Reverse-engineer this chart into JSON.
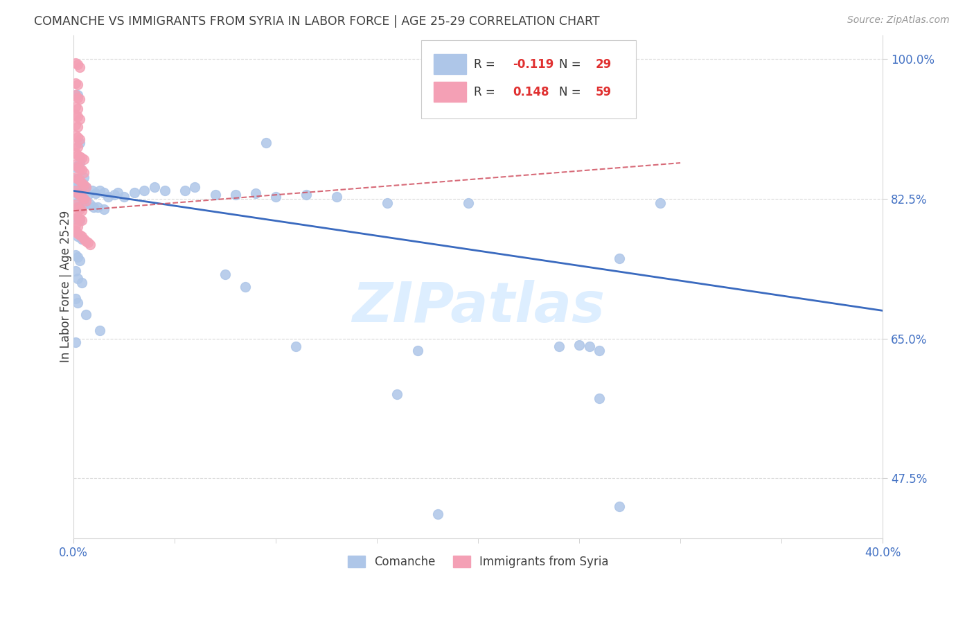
{
  "title": "COMANCHE VS IMMIGRANTS FROM SYRIA IN LABOR FORCE | AGE 25-29 CORRELATION CHART",
  "source": "Source: ZipAtlas.com",
  "ylabel": "In Labor Force | Age 25-29",
  "xlim": [
    0.0,
    0.4
  ],
  "ylim": [
    0.4,
    1.03
  ],
  "watermark": "ZIPatlas",
  "blue_color": "#aec6e8",
  "pink_color": "#f4a0b5",
  "blue_line_color": "#3a6abf",
  "pink_line_color": "#d05060",
  "grid_color": "#d8d8d8",
  "title_color": "#404040",
  "axis_color": "#4472c4",
  "watermark_color": "#ddeeff",
  "blue_scatter": [
    [
      0.001,
      0.955
    ],
    [
      0.002,
      0.955
    ],
    [
      0.003,
      0.895
    ],
    [
      0.001,
      0.865
    ],
    [
      0.003,
      0.87
    ],
    [
      0.001,
      0.85
    ],
    [
      0.002,
      0.85
    ],
    [
      0.003,
      0.848
    ],
    [
      0.005,
      0.852
    ],
    [
      0.001,
      0.84
    ],
    [
      0.002,
      0.84
    ],
    [
      0.004,
      0.843
    ],
    [
      0.006,
      0.84
    ],
    [
      0.001,
      0.833
    ],
    [
      0.002,
      0.832
    ],
    [
      0.003,
      0.83
    ],
    [
      0.005,
      0.828
    ],
    [
      0.007,
      0.83
    ],
    [
      0.009,
      0.835
    ],
    [
      0.011,
      0.832
    ],
    [
      0.013,
      0.835
    ],
    [
      0.015,
      0.833
    ],
    [
      0.017,
      0.828
    ],
    [
      0.02,
      0.83
    ],
    [
      0.022,
      0.833
    ],
    [
      0.025,
      0.828
    ],
    [
      0.03,
      0.833
    ],
    [
      0.035,
      0.835
    ],
    [
      0.04,
      0.84
    ],
    [
      0.045,
      0.835
    ],
    [
      0.055,
      0.835
    ],
    [
      0.06,
      0.84
    ],
    [
      0.07,
      0.83
    ],
    [
      0.08,
      0.83
    ],
    [
      0.09,
      0.832
    ],
    [
      0.1,
      0.828
    ],
    [
      0.115,
      0.83
    ],
    [
      0.13,
      0.828
    ],
    [
      0.001,
      0.82
    ],
    [
      0.002,
      0.815
    ],
    [
      0.003,
      0.815
    ],
    [
      0.005,
      0.818
    ],
    [
      0.008,
      0.818
    ],
    [
      0.01,
      0.815
    ],
    [
      0.012,
      0.815
    ],
    [
      0.015,
      0.812
    ],
    [
      0.001,
      0.8
    ],
    [
      0.003,
      0.798
    ],
    [
      0.001,
      0.785
    ],
    [
      0.002,
      0.778
    ],
    [
      0.004,
      0.775
    ],
    [
      0.001,
      0.755
    ],
    [
      0.002,
      0.752
    ],
    [
      0.003,
      0.748
    ],
    [
      0.001,
      0.735
    ],
    [
      0.002,
      0.725
    ],
    [
      0.004,
      0.72
    ],
    [
      0.001,
      0.7
    ],
    [
      0.002,
      0.695
    ],
    [
      0.006,
      0.68
    ],
    [
      0.013,
      0.66
    ],
    [
      0.001,
      0.645
    ],
    [
      0.11,
      0.64
    ],
    [
      0.17,
      0.635
    ],
    [
      0.24,
      0.64
    ],
    [
      0.26,
      0.635
    ],
    [
      0.27,
      0.75
    ],
    [
      0.29,
      0.82
    ],
    [
      0.155,
      0.82
    ],
    [
      0.195,
      0.82
    ],
    [
      0.25,
      0.642
    ],
    [
      0.255,
      0.64
    ],
    [
      0.16,
      0.58
    ],
    [
      0.26,
      0.575
    ],
    [
      0.18,
      0.43
    ],
    [
      0.27,
      0.44
    ],
    [
      0.075,
      0.73
    ],
    [
      0.085,
      0.715
    ],
    [
      0.095,
      0.895
    ]
  ],
  "pink_scatter": [
    [
      0.001,
      0.995
    ],
    [
      0.002,
      0.993
    ],
    [
      0.003,
      0.99
    ],
    [
      0.001,
      0.97
    ],
    [
      0.002,
      0.968
    ],
    [
      0.001,
      0.955
    ],
    [
      0.002,
      0.952
    ],
    [
      0.003,
      0.95
    ],
    [
      0.001,
      0.94
    ],
    [
      0.002,
      0.938
    ],
    [
      0.001,
      0.93
    ],
    [
      0.002,
      0.928
    ],
    [
      0.003,
      0.925
    ],
    [
      0.001,
      0.918
    ],
    [
      0.002,
      0.915
    ],
    [
      0.001,
      0.905
    ],
    [
      0.002,
      0.902
    ],
    [
      0.003,
      0.9
    ],
    [
      0.001,
      0.892
    ],
    [
      0.002,
      0.89
    ],
    [
      0.001,
      0.882
    ],
    [
      0.002,
      0.88
    ],
    [
      0.003,
      0.878
    ],
    [
      0.004,
      0.876
    ],
    [
      0.005,
      0.874
    ],
    [
      0.001,
      0.868
    ],
    [
      0.002,
      0.865
    ],
    [
      0.003,
      0.863
    ],
    [
      0.004,
      0.861
    ],
    [
      0.005,
      0.858
    ],
    [
      0.001,
      0.852
    ],
    [
      0.002,
      0.85
    ],
    [
      0.003,
      0.848
    ],
    [
      0.004,
      0.845
    ],
    [
      0.005,
      0.842
    ],
    [
      0.006,
      0.84
    ],
    [
      0.001,
      0.835
    ],
    [
      0.002,
      0.832
    ],
    [
      0.003,
      0.83
    ],
    [
      0.004,
      0.828
    ],
    [
      0.005,
      0.825
    ],
    [
      0.006,
      0.822
    ],
    [
      0.001,
      0.818
    ],
    [
      0.002,
      0.815
    ],
    [
      0.003,
      0.812
    ],
    [
      0.004,
      0.81
    ],
    [
      0.001,
      0.805
    ],
    [
      0.002,
      0.802
    ],
    [
      0.003,
      0.8
    ],
    [
      0.004,
      0.798
    ],
    [
      0.001,
      0.792
    ],
    [
      0.002,
      0.79
    ],
    [
      0.001,
      0.785
    ],
    [
      0.002,
      0.782
    ],
    [
      0.003,
      0.78
    ],
    [
      0.004,
      0.778
    ],
    [
      0.005,
      0.775
    ],
    [
      0.006,
      0.772
    ],
    [
      0.007,
      0.77
    ],
    [
      0.008,
      0.768
    ]
  ]
}
